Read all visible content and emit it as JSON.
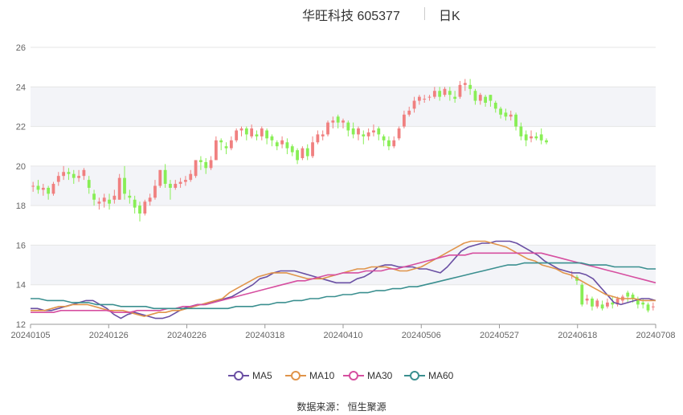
{
  "title": {
    "main": "华旺科技 605377",
    "period": "日K"
  },
  "source": "数据来源：  恒生聚源",
  "colors": {
    "up": "#f08080",
    "down": "#88ee55",
    "MA5": "#6a4fa3",
    "MA10": "#e0944a",
    "MA30": "#d64fa0",
    "MA60": "#3a8f8f",
    "grid_band": "#f3f4f8",
    "grid_line": "#e6e6e6"
  },
  "legend": [
    {
      "name": "MA5",
      "icon": "circle-line-icon"
    },
    {
      "name": "MA10",
      "icon": "circle-line-icon"
    },
    {
      "name": "MA30",
      "icon": "circle-line-icon"
    },
    {
      "name": "MA60",
      "icon": "circle-line-icon"
    }
  ],
  "chart_data": {
    "type": "candlestick",
    "title": "华旺科技 605377",
    "ylim": [
      12,
      26
    ],
    "yticks": [
      12,
      14,
      16,
      18,
      20,
      22,
      24,
      26
    ],
    "xticks": [
      "20240105",
      "20240126",
      "20240226",
      "20240318",
      "20240410",
      "20240506",
      "20240527",
      "20240618",
      "20240708"
    ],
    "grid": true,
    "legend_position": "bottom",
    "candles": [
      [
        19.0,
        19.0,
        18.7,
        19.2
      ],
      [
        19.0,
        18.8,
        18.6,
        19.3
      ],
      [
        18.8,
        18.9,
        18.5,
        19.1
      ],
      [
        18.9,
        18.6,
        18.3,
        19.0
      ],
      [
        18.6,
        19.1,
        18.5,
        19.2
      ],
      [
        19.2,
        19.5,
        19.0,
        19.7
      ],
      [
        19.5,
        19.7,
        19.3,
        20.0
      ],
      [
        19.7,
        19.6,
        19.3,
        19.9
      ],
      [
        19.6,
        19.4,
        19.1,
        19.8
      ],
      [
        19.4,
        19.5,
        19.2,
        19.8
      ],
      [
        19.5,
        19.8,
        19.3,
        19.9
      ],
      [
        19.3,
        18.9,
        18.6,
        19.5
      ],
      [
        18.6,
        18.3,
        18.0,
        18.8
      ],
      [
        18.1,
        18.2,
        17.8,
        18.4
      ],
      [
        18.2,
        18.4,
        17.9,
        18.6
      ],
      [
        18.3,
        18.1,
        17.8,
        18.6
      ],
      [
        18.3,
        18.5,
        18.1,
        18.8
      ],
      [
        18.3,
        19.4,
        18.3,
        19.6
      ],
      [
        19.4,
        18.6,
        18.3,
        20.0
      ],
      [
        18.5,
        18.4,
        18.1,
        18.8
      ],
      [
        18.3,
        17.9,
        17.6,
        18.5
      ],
      [
        18.0,
        17.6,
        17.2,
        18.2
      ],
      [
        17.6,
        18.2,
        17.5,
        18.3
      ],
      [
        18.2,
        18.4,
        18.0,
        18.6
      ],
      [
        18.4,
        19.0,
        18.3,
        19.3
      ],
      [
        19.0,
        19.8,
        18.9,
        19.8
      ],
      [
        19.8,
        19.1,
        18.9,
        20.1
      ],
      [
        19.1,
        18.9,
        18.3,
        19.3
      ],
      [
        18.9,
        19.1,
        18.8,
        19.3
      ],
      [
        19.1,
        19.2,
        18.9,
        19.4
      ],
      [
        19.2,
        19.3,
        19.0,
        19.5
      ],
      [
        19.3,
        19.6,
        19.2,
        19.8
      ],
      [
        19.5,
        20.3,
        19.4,
        20.3
      ],
      [
        20.3,
        20.2,
        19.8,
        20.5
      ],
      [
        20.2,
        19.9,
        19.6,
        20.4
      ],
      [
        19.9,
        20.3,
        19.8,
        20.5
      ],
      [
        20.3,
        21.3,
        20.3,
        21.5
      ],
      [
        21.3,
        21.2,
        20.8,
        21.4
      ],
      [
        21.0,
        20.9,
        20.6,
        21.2
      ],
      [
        20.9,
        21.3,
        20.8,
        21.5
      ],
      [
        21.3,
        21.8,
        21.2,
        21.9
      ],
      [
        21.8,
        21.9,
        21.5,
        22.0
      ],
      [
        21.9,
        21.6,
        21.3,
        22.0
      ],
      [
        21.5,
        21.9,
        21.4,
        22.1
      ],
      [
        21.6,
        21.5,
        21.3,
        21.8
      ],
      [
        21.5,
        21.9,
        21.3,
        22.0
      ],
      [
        21.8,
        21.4,
        21.1,
        21.9
      ],
      [
        21.5,
        21.3,
        21.0,
        21.6
      ],
      [
        21.2,
        21.0,
        20.8,
        21.3
      ],
      [
        21.1,
        21.3,
        20.9,
        21.5
      ],
      [
        21.2,
        20.9,
        20.6,
        21.4
      ],
      [
        21.0,
        20.7,
        20.5,
        21.1
      ],
      [
        20.8,
        20.3,
        20.1,
        20.9
      ],
      [
        20.4,
        20.9,
        20.3,
        21.0
      ],
      [
        20.9,
        20.5,
        20.3,
        21.1
      ],
      [
        20.5,
        21.2,
        20.4,
        21.5
      ],
      [
        21.2,
        21.6,
        21.1,
        21.8
      ],
      [
        21.5,
        21.6,
        21.3,
        21.8
      ],
      [
        21.6,
        22.2,
        21.5,
        22.3
      ],
      [
        22.2,
        22.3,
        21.9,
        22.5
      ],
      [
        22.5,
        22.2,
        21.9,
        22.6
      ],
      [
        22.2,
        22.3,
        21.9,
        22.4
      ],
      [
        22.2,
        21.8,
        21.5,
        22.3
      ],
      [
        21.9,
        21.6,
        21.4,
        22.2
      ],
      [
        21.6,
        21.9,
        21.3,
        22.0
      ],
      [
        21.6,
        21.5,
        21.1,
        21.8
      ],
      [
        21.5,
        21.7,
        21.3,
        21.9
      ],
      [
        21.7,
        21.8,
        21.5,
        22.1
      ],
      [
        21.9,
        21.6,
        21.3,
        22.0
      ],
      [
        21.5,
        21.3,
        21.0,
        21.6
      ],
      [
        21.3,
        21.0,
        20.8,
        21.5
      ],
      [
        21.0,
        21.3,
        20.9,
        21.5
      ],
      [
        21.4,
        21.9,
        21.3,
        22.0
      ],
      [
        22.0,
        22.6,
        21.9,
        22.8
      ],
      [
        22.6,
        22.8,
        22.5,
        23.0
      ],
      [
        22.9,
        23.3,
        22.7,
        23.5
      ],
      [
        23.3,
        23.5,
        23.1,
        23.6
      ],
      [
        23.4,
        23.4,
        23.2,
        23.6
      ],
      [
        23.5,
        23.5,
        23.3,
        23.6
      ],
      [
        23.5,
        23.8,
        23.4,
        24.0
      ],
      [
        23.8,
        23.5,
        23.3,
        24.0
      ],
      [
        23.6,
        23.9,
        23.5,
        24.0
      ],
      [
        23.8,
        23.6,
        23.3,
        24.0
      ],
      [
        23.5,
        23.4,
        23.2,
        23.8
      ],
      [
        23.5,
        24.1,
        23.4,
        24.3
      ],
      [
        24.1,
        24.2,
        23.8,
        24.4
      ],
      [
        24.1,
        23.9,
        23.6,
        24.4
      ],
      [
        23.8,
        23.3,
        23.1,
        23.9
      ],
      [
        23.3,
        23.6,
        23.1,
        23.7
      ],
      [
        23.5,
        23.2,
        23.0,
        23.6
      ],
      [
        23.6,
        23.3,
        23.0,
        23.6
      ],
      [
        23.2,
        22.9,
        22.7,
        23.3
      ],
      [
        22.9,
        22.6,
        22.4,
        23.0
      ],
      [
        22.7,
        22.5,
        22.3,
        22.9
      ],
      [
        22.5,
        22.6,
        22.3,
        22.8
      ],
      [
        22.6,
        22.0,
        21.8,
        22.7
      ],
      [
        22.0,
        21.5,
        21.3,
        22.2
      ],
      [
        21.6,
        21.3,
        21.0,
        21.8
      ],
      [
        21.4,
        21.5,
        21.2,
        21.8
      ],
      [
        21.5,
        21.4,
        21.3,
        21.7
      ],
      [
        21.6,
        21.3,
        21.1,
        21.9
      ],
      [
        21.3,
        21.2,
        21.1,
        21.4
      ],
      null,
      null,
      null,
      null,
      [
        14.5,
        14.5,
        14.3,
        14.7
      ],
      [
        14.4,
        14.2,
        14.0,
        14.5
      ],
      [
        14.0,
        13.0,
        12.9,
        14.1
      ],
      [
        13.2,
        13.3,
        13.0,
        13.5
      ],
      [
        13.3,
        12.9,
        12.7,
        13.4
      ],
      [
        12.9,
        13.2,
        12.8,
        13.3
      ],
      [
        13.0,
        12.8,
        12.7,
        13.2
      ],
      [
        12.9,
        13.1,
        12.8,
        13.3
      ],
      [
        13.1,
        13.0,
        12.8,
        13.4
      ],
      [
        13.0,
        13.3,
        12.9,
        13.4
      ],
      [
        13.2,
        13.4,
        13.0,
        13.5
      ],
      [
        13.6,
        13.4,
        13.1,
        13.7
      ],
      [
        13.5,
        13.3,
        13.1,
        13.6
      ],
      [
        13.3,
        13.0,
        12.8,
        13.4
      ],
      [
        13.1,
        13.0,
        12.8,
        13.3
      ],
      [
        13.0,
        12.7,
        12.6,
        13.1
      ],
      [
        12.9,
        12.9,
        12.7,
        13.1
      ]
    ],
    "series": [
      {
        "name": "MA5",
        "values": [
          12.8,
          12.8,
          12.7,
          12.7,
          12.8,
          12.9,
          13.0,
          13.1,
          13.2,
          13.2,
          13.0,
          12.8,
          12.5,
          12.3,
          12.5,
          12.6,
          12.5,
          12.4,
          12.3,
          12.3,
          12.4,
          12.6,
          12.8,
          12.9,
          13.0,
          13.0,
          13.1,
          13.2,
          13.3,
          13.4,
          13.6,
          13.8,
          14.0,
          14.3,
          14.4,
          14.6,
          14.7,
          14.7,
          14.7,
          14.6,
          14.5,
          14.4,
          14.3,
          14.2,
          14.1,
          14.1,
          14.1,
          14.3,
          14.4,
          14.6,
          14.9,
          15.0,
          15.0,
          14.9,
          14.9,
          14.9,
          14.8,
          14.8,
          14.7,
          14.6,
          14.9,
          15.3,
          15.7,
          15.9,
          16.0,
          16.1,
          16.1,
          16.2,
          16.2,
          16.2,
          16.1,
          15.9,
          15.7,
          15.5,
          15.2,
          15.0,
          14.8,
          14.7,
          14.6,
          14.6,
          14.5,
          14.3,
          13.9,
          13.5,
          13.1,
          13.0,
          13.1,
          13.2,
          13.3,
          13.3,
          13.2
        ]
      },
      {
        "name": "MA10",
        "values": [
          12.7,
          12.7,
          12.7,
          12.8,
          12.9,
          12.9,
          13.0,
          13.0,
          13.0,
          12.9,
          12.8,
          12.7,
          12.7,
          12.7,
          12.6,
          12.5,
          12.4,
          12.5,
          12.6,
          12.6,
          12.7,
          12.7,
          12.8,
          12.9,
          13.0,
          13.1,
          13.2,
          13.3,
          13.6,
          13.8,
          14.0,
          14.2,
          14.4,
          14.5,
          14.6,
          14.6,
          14.6,
          14.5,
          14.4,
          14.3,
          14.3,
          14.3,
          14.4,
          14.5,
          14.6,
          14.7,
          14.8,
          14.8,
          14.9,
          14.9,
          14.9,
          14.8,
          14.7,
          14.7,
          14.8,
          14.9,
          15.1,
          15.3,
          15.5,
          15.7,
          15.9,
          16.1,
          16.2,
          16.2,
          16.2,
          16.1,
          16.0,
          15.9,
          15.7,
          15.5,
          15.3,
          15.2,
          15.0,
          14.9,
          14.8,
          14.6,
          14.5,
          14.3,
          14.1,
          13.9,
          13.7,
          13.5,
          13.4,
          13.3,
          13.3,
          13.3,
          13.2,
          13.2,
          13.2
        ]
      },
      {
        "name": "MA30",
        "values": [
          12.6,
          12.6,
          12.6,
          12.6,
          12.7,
          12.7,
          12.7,
          12.7,
          12.7,
          12.7,
          12.7,
          12.6,
          12.6,
          12.6,
          12.7,
          12.7,
          12.7,
          12.7,
          12.8,
          12.8,
          12.9,
          12.9,
          13.0,
          13.0,
          13.1,
          13.2,
          13.3,
          13.4,
          13.5,
          13.6,
          13.7,
          13.8,
          13.9,
          14.0,
          14.1,
          14.2,
          14.2,
          14.3,
          14.4,
          14.5,
          14.5,
          14.6,
          14.6,
          14.6,
          14.7,
          14.7,
          14.7,
          14.8,
          14.8,
          14.9,
          15.0,
          15.1,
          15.2,
          15.3,
          15.4,
          15.5,
          15.5,
          15.5,
          15.6,
          15.6,
          15.6,
          15.6,
          15.6,
          15.6,
          15.6,
          15.6,
          15.6,
          15.6,
          15.5,
          15.4,
          15.3,
          15.2,
          15.1,
          15.0,
          14.9,
          14.8,
          14.7,
          14.6,
          14.5,
          14.4,
          14.3,
          14.2,
          14.1
        ]
      },
      {
        "name": "MA60",
        "values": [
          13.3,
          13.3,
          13.2,
          13.2,
          13.2,
          13.1,
          13.1,
          13.1,
          13.0,
          13.0,
          13.0,
          12.9,
          12.9,
          12.9,
          12.9,
          12.8,
          12.8,
          12.8,
          12.8,
          12.8,
          12.8,
          12.8,
          12.8,
          12.8,
          12.8,
          12.9,
          12.9,
          12.9,
          13.0,
          13.0,
          13.1,
          13.1,
          13.2,
          13.2,
          13.3,
          13.3,
          13.4,
          13.4,
          13.5,
          13.5,
          13.6,
          13.6,
          13.7,
          13.7,
          13.8,
          13.8,
          13.9,
          13.9,
          14.0,
          14.1,
          14.2,
          14.3,
          14.4,
          14.5,
          14.6,
          14.7,
          14.8,
          14.9,
          15.0,
          15.0,
          15.1,
          15.1,
          15.1,
          15.1,
          15.1,
          15.1,
          15.1,
          15.1,
          15.0,
          15.0,
          15.0,
          14.9,
          14.9,
          14.9,
          14.9,
          14.8,
          14.8
        ]
      }
    ]
  }
}
